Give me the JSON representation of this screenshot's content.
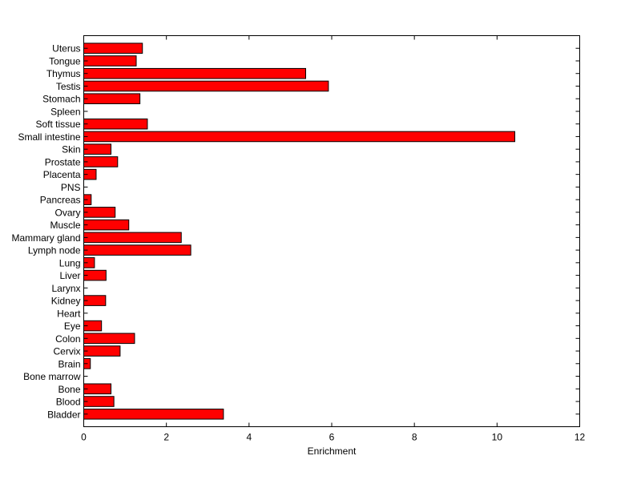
{
  "chart_data": {
    "type": "bar",
    "orientation": "horizontal",
    "title": "",
    "xlabel": "Enrichment",
    "ylabel": "",
    "xlim": [
      0,
      12
    ],
    "xticks": [
      0,
      2,
      4,
      6,
      8,
      10,
      12
    ],
    "grid": false,
    "legend": false,
    "bar_color": "#ff0000",
    "bar_edge_color": "#000000",
    "categories": [
      "Uterus",
      "Tongue",
      "Thymus",
      "Testis",
      "Stomach",
      "Spleen",
      "Soft tissue",
      "Small intestine",
      "Skin",
      "Prostate",
      "Placenta",
      "PNS",
      "Pancreas",
      "Ovary",
      "Muscle",
      "Mammary gland",
      "Lymph node",
      "Lung",
      "Liver",
      "Larynx",
      "Kidney",
      "Heart",
      "Eye",
      "Colon",
      "Cervix",
      "Brain",
      "Bone marrow",
      "Bone",
      "Blood",
      "Bladder"
    ],
    "values": [
      1.42,
      1.27,
      5.37,
      5.92,
      1.36,
      0,
      1.54,
      10.43,
      0.66,
      0.82,
      0.3,
      0,
      0.18,
      0.76,
      1.09,
      2.36,
      2.59,
      0.26,
      0.54,
      0,
      0.53,
      0,
      0.43,
      1.23,
      0.88,
      0.16,
      0,
      0.66,
      0.73,
      3.38
    ]
  }
}
